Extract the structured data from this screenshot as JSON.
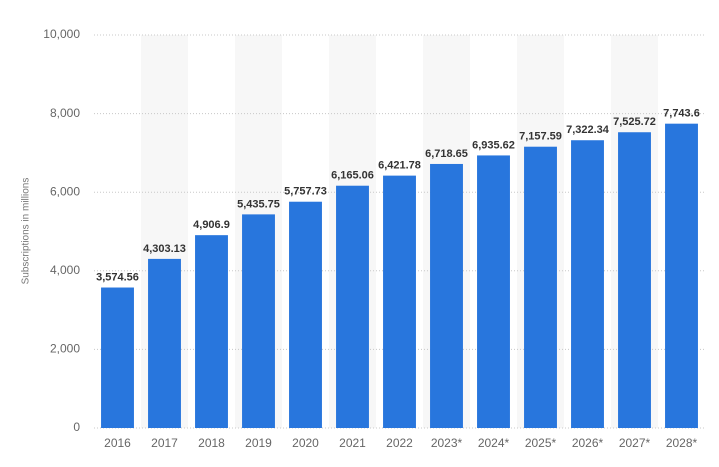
{
  "chart_data": {
    "type": "bar",
    "y_label": "Subscriptions in millions",
    "categories": [
      "2016",
      "2017",
      "2018",
      "2019",
      "2020",
      "2021",
      "2022",
      "2023*",
      "2024*",
      "2025*",
      "2026*",
      "2027*",
      "2028*"
    ],
    "values": [
      3574.56,
      4303.13,
      4906.9,
      5435.75,
      5757.73,
      6165.06,
      6421.78,
      6718.65,
      6935.62,
      7157.59,
      7322.34,
      7525.72,
      7743.6
    ],
    "value_labels": [
      "3,574.56",
      "4,303.13",
      "4,906.9",
      "5,435.75",
      "5,757.73",
      "6,165.06",
      "6,421.78",
      "6,718.65",
      "6,935.62",
      "7,157.59",
      "7,322.34",
      "7,525.72",
      "7,743.6"
    ],
    "color": "#2876dd",
    "ylim": [
      0,
      10000
    ],
    "yticks": [
      0,
      {
        "value": 2000,
        "label": "2,000"
      },
      {
        "value": 4000,
        "label": "4,000"
      },
      {
        "value": 6000,
        "label": "6,000"
      },
      {
        "value": 8000,
        "label": "8,000"
      },
      {
        "value": 10000,
        "label": "10,000"
      }
    ],
    "grid": true
  }
}
